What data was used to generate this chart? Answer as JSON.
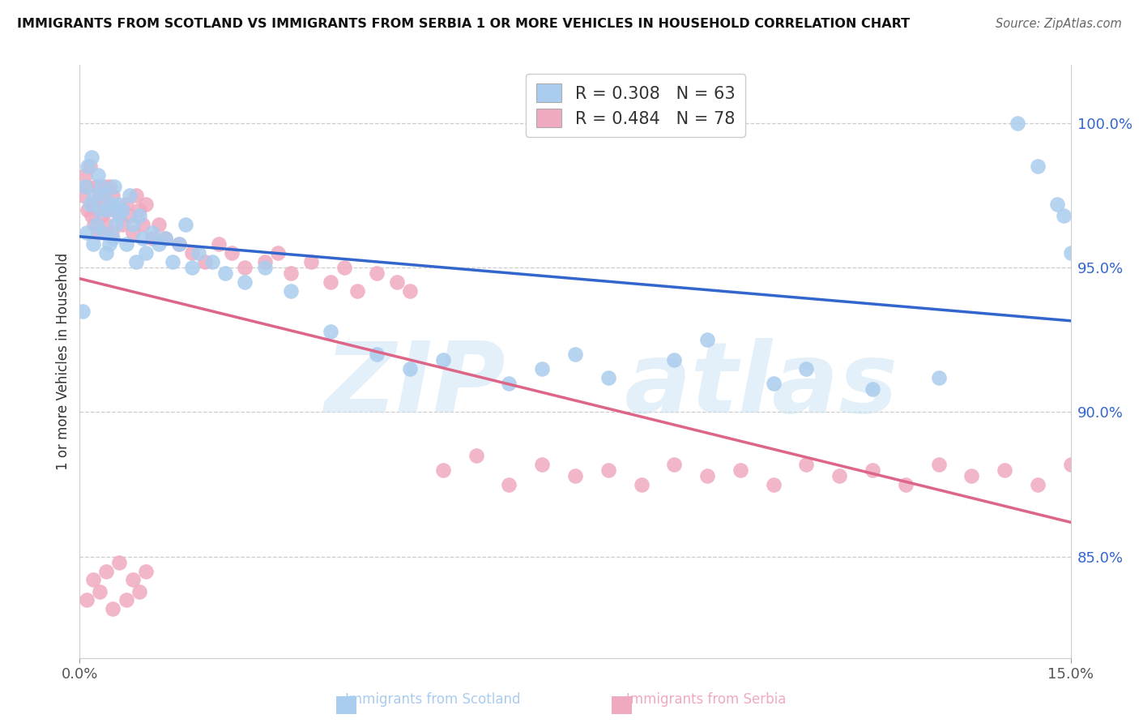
{
  "title": "IMMIGRANTS FROM SCOTLAND VS IMMIGRANTS FROM SERBIA 1 OR MORE VEHICLES IN HOUSEHOLD CORRELATION CHART",
  "source": "Source: ZipAtlas.com",
  "ylabel": "1 or more Vehicles in Household",
  "xmin": 0.0,
  "xmax": 15.0,
  "ymin": 81.5,
  "ymax": 102.0,
  "scotland_color": "#aaccee",
  "serbia_color": "#f0aac0",
  "scotland_line_color": "#3366cc",
  "serbia_line_color": "#dd6688",
  "scotland_R": 0.308,
  "scotland_N": 63,
  "serbia_R": 0.484,
  "serbia_N": 78,
  "grid_yticks": [
    85.0,
    90.0,
    95.0,
    100.0
  ],
  "right_yticklabels": [
    "85.0%",
    "90.0%",
    "95.0%",
    "100.0%"
  ],
  "bottom_label_scotland": "Immigrants from Scotland",
  "bottom_label_serbia": "Immigrants from Serbia",
  "scotland_x": [
    0.05,
    0.08,
    0.1,
    0.12,
    0.15,
    0.18,
    0.2,
    0.22,
    0.25,
    0.28,
    0.3,
    0.32,
    0.35,
    0.38,
    0.4,
    0.42,
    0.45,
    0.48,
    0.5,
    0.52,
    0.55,
    0.58,
    0.6,
    0.65,
    0.7,
    0.75,
    0.8,
    0.85,
    0.9,
    0.95,
    1.0,
    1.1,
    1.2,
    1.3,
    1.4,
    1.5,
    1.6,
    1.7,
    1.8,
    2.0,
    2.2,
    2.5,
    2.8,
    3.2,
    3.8,
    4.5,
    5.0,
    5.5,
    6.5,
    7.0,
    7.5,
    8.0,
    9.0,
    9.5,
    10.5,
    11.0,
    12.0,
    13.0,
    14.2,
    14.5,
    14.8,
    14.9,
    15.0
  ],
  "scotland_y": [
    93.5,
    97.8,
    96.2,
    98.5,
    97.2,
    98.8,
    95.8,
    97.5,
    96.5,
    98.2,
    97.0,
    97.8,
    96.2,
    97.5,
    95.5,
    97.0,
    95.8,
    97.2,
    96.0,
    97.8,
    96.5,
    97.2,
    96.8,
    97.0,
    95.8,
    97.5,
    96.5,
    95.2,
    96.8,
    96.0,
    95.5,
    96.2,
    95.8,
    96.0,
    95.2,
    95.8,
    96.5,
    95.0,
    95.5,
    95.2,
    94.8,
    94.5,
    95.0,
    94.2,
    92.8,
    92.0,
    91.5,
    91.8,
    91.0,
    91.5,
    92.0,
    91.2,
    91.8,
    92.5,
    91.0,
    91.5,
    90.8,
    91.2,
    100.0,
    98.5,
    97.2,
    96.8,
    95.5
  ],
  "serbia_x": [
    0.05,
    0.08,
    0.1,
    0.12,
    0.15,
    0.18,
    0.2,
    0.22,
    0.25,
    0.28,
    0.3,
    0.32,
    0.35,
    0.38,
    0.4,
    0.42,
    0.45,
    0.48,
    0.5,
    0.55,
    0.6,
    0.65,
    0.7,
    0.75,
    0.8,
    0.85,
    0.9,
    0.95,
    1.0,
    1.1,
    1.2,
    1.3,
    1.5,
    1.7,
    1.9,
    2.1,
    2.3,
    2.5,
    2.8,
    3.0,
    3.2,
    3.5,
    3.8,
    4.0,
    4.2,
    4.5,
    4.8,
    5.0,
    5.5,
    6.0,
    6.5,
    7.0,
    7.5,
    8.0,
    8.5,
    9.0,
    9.5,
    10.0,
    10.5,
    11.0,
    11.5,
    12.0,
    12.5,
    13.0,
    13.5,
    14.0,
    14.5,
    15.0,
    0.1,
    0.2,
    0.3,
    0.4,
    0.5,
    0.6,
    0.7,
    0.8,
    0.9,
    1.0
  ],
  "serbia_y": [
    97.5,
    98.2,
    97.8,
    97.0,
    98.5,
    96.8,
    97.2,
    96.5,
    97.8,
    96.2,
    97.5,
    96.8,
    97.2,
    97.8,
    96.5,
    97.0,
    97.8,
    96.2,
    97.5,
    97.0,
    96.8,
    96.5,
    97.2,
    96.8,
    96.2,
    97.5,
    97.0,
    96.5,
    97.2,
    96.0,
    96.5,
    96.0,
    95.8,
    95.5,
    95.2,
    95.8,
    95.5,
    95.0,
    95.2,
    95.5,
    94.8,
    95.2,
    94.5,
    95.0,
    94.2,
    94.8,
    94.5,
    94.2,
    88.0,
    88.5,
    87.5,
    88.2,
    87.8,
    88.0,
    87.5,
    88.2,
    87.8,
    88.0,
    87.5,
    88.2,
    87.8,
    88.0,
    87.5,
    88.2,
    87.8,
    88.0,
    87.5,
    88.2,
    83.5,
    84.2,
    83.8,
    84.5,
    83.2,
    84.8,
    83.5,
    84.2,
    83.8,
    84.5
  ]
}
